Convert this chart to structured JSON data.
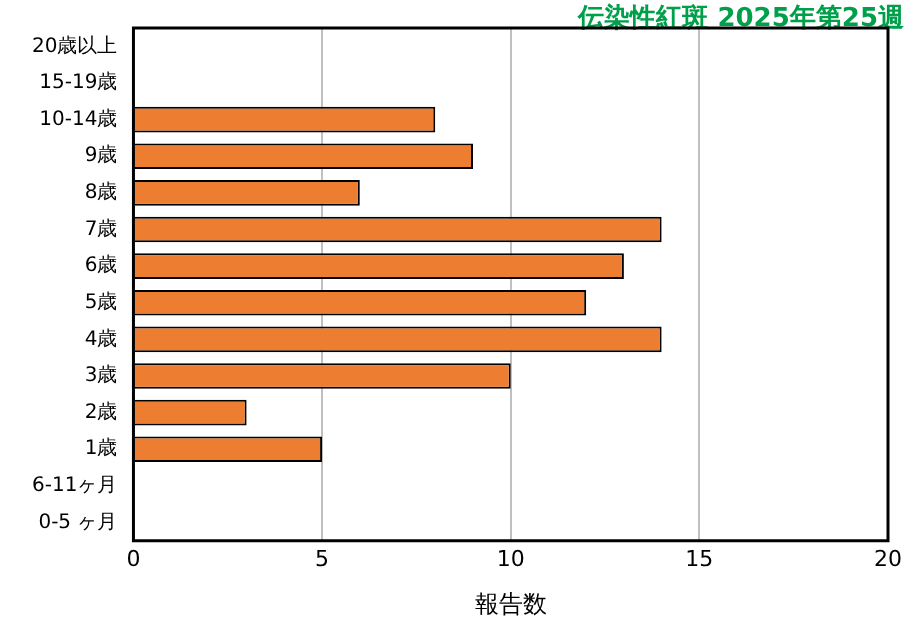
{
  "chart_data": {
    "type": "bar",
    "orientation": "horizontal",
    "title": "伝染性紅斑 2025年第25週",
    "xlabel": "報告数",
    "categories": [
      "20歳以上",
      "15-19歳",
      "10-14歳",
      "9歳",
      "8歳",
      "7歳",
      "6歳",
      "5歳",
      "4歳",
      "3歳",
      "2歳",
      "1歳",
      "6-11ヶ月",
      "0-5 ヶ月"
    ],
    "values": [
      0,
      0,
      8,
      9,
      6,
      14,
      13,
      12,
      14,
      10,
      3,
      5,
      0,
      0
    ],
    "color": "#ed7d31",
    "xlim": [
      0,
      20
    ],
    "xticks": [
      0,
      5,
      10,
      15,
      20
    ],
    "grid": "x",
    "legend": false
  }
}
